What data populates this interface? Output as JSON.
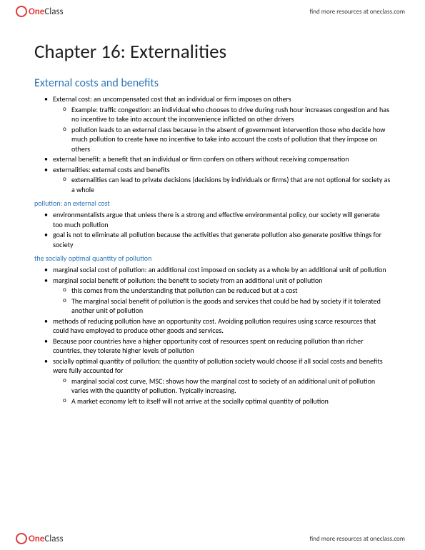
{
  "brand": {
    "one": "One",
    "class": "Class"
  },
  "header_link": "find more resources at oneclass.com",
  "footer_link": "find more resources at oneclass.com",
  "title": "Chapter 16: Externalities",
  "section1": {
    "heading": "External costs and benefits",
    "b1": "External cost: an uncompensated cost that an individual or firm imposes on others",
    "b1a": "Example: traffic congestion: an individual who chooses to drive during rush hour increases congestion and has no incentive to take into account the inconvenience inflicted on other drivers",
    "b1b": "pollution leads to an external class because in the absent of government intervention those who decide how much pollution to create have no incentive to take into account the costs of pollution that they impose on others",
    "b2": "external benefit: a benefit that an individual or firm confers on others without receiving compensation",
    "b3": "externalities:  external costs and benefits",
    "b3a": "externalities can lead to private decisions (decisions by individuals or firms) that are not optional for society as a whole"
  },
  "section2": {
    "heading": "pollution: an external cost",
    "b1": " environmentalists argue that unless there is a strong and effective environmental policy, our society will generate too much pollution",
    "b2": "goal is not to eliminate all pollution because the activities that generate pollution also generate positive things for society"
  },
  "section3": {
    "heading": "the socially optimal quantity of pollution",
    "b1": "marginal social cost of pollution: an additional cost imposed on society as a whole by an additional unit of pollution",
    "b2": "marginal social benefit of pollution: the benefit to society from an additional unit of pollution",
    "b2a": "this comes from the understanding that pollution can be reduced but at a cost",
    "b2b": "The marginal social benefit of pollution is the goods and services that could be had by society if it tolerated another unit of pollution",
    "b3": "methods of reducing pollution have an opportunity cost. Avoiding pollution requires using scarce resources that could have employed to produce other goods and services.",
    "b4": " Because poor countries have a higher opportunity cost of resources spent on reducing pollution than richer countries, they tolerate higher levels of pollution",
    "b5": " socially optimal quantity of pollution: the quantity of pollution society would choose if all social costs and benefits were fully accounted for",
    "b5a": "marginal social cost curve, MSC: shows how the marginal cost to society of an additional unit of pollution varies with the quantity of pollution. Typically increasing.",
    "b5b": "A market economy left to itself will not arrive at the socially optimal quantity of pollution"
  }
}
